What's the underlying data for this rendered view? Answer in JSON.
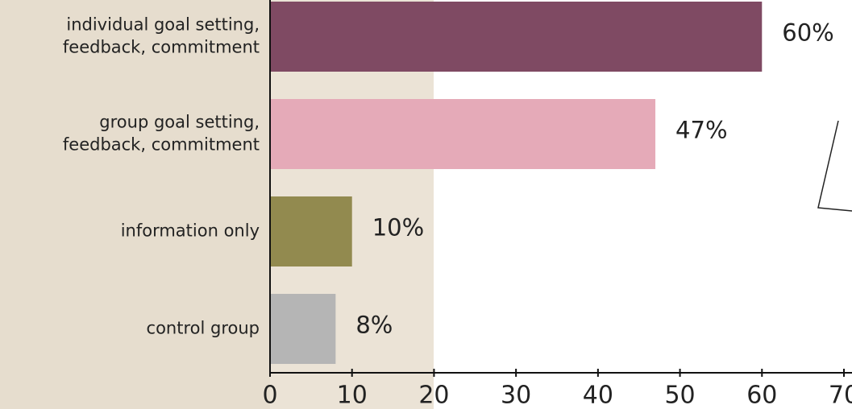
{
  "chart_data": {
    "type": "bar",
    "orientation": "horizontal",
    "categories": [
      "individual goal setting,\nfeedback, commitment",
      "group goal setting,\nfeedback, commitment",
      "information only",
      "control group"
    ],
    "values": [
      60,
      47,
      10,
      8
    ],
    "value_labels": [
      "60%",
      "47%",
      "10%",
      "8%"
    ],
    "colors": [
      "#7f4a63",
      "#e5aab8",
      "#928a4f",
      "#b5b5b5"
    ],
    "xlim": [
      0,
      70
    ],
    "xticks": [
      0,
      10,
      20,
      30,
      40,
      50,
      60,
      70
    ]
  }
}
